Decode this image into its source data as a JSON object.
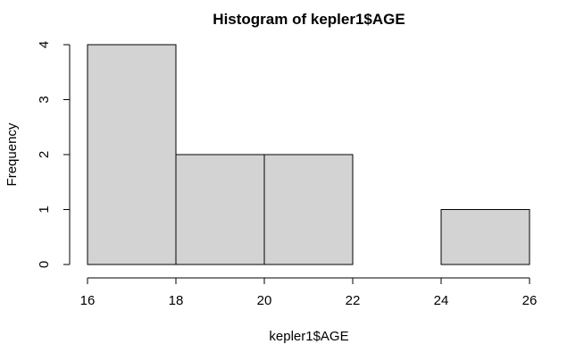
{
  "chart_data": {
    "type": "bar",
    "title": "Histogram of kepler1$AGE",
    "xlabel": "kepler1$AGE",
    "ylabel": "Frequency",
    "bins": [
      {
        "start": 16,
        "end": 18,
        "count": 4
      },
      {
        "start": 18,
        "end": 20,
        "count": 2
      },
      {
        "start": 20,
        "end": 22,
        "count": 2
      },
      {
        "start": 22,
        "end": 24,
        "count": 0
      },
      {
        "start": 24,
        "end": 26,
        "count": 1
      }
    ],
    "xlim": [
      16,
      26
    ],
    "ylim": [
      0,
      4
    ],
    "x_ticks": [
      16,
      18,
      20,
      22,
      24,
      26
    ],
    "y_ticks": [
      0,
      1,
      2,
      3,
      4
    ],
    "grid": false,
    "bar_fill": "#d3d3d3",
    "bar_stroke": "#000000"
  }
}
